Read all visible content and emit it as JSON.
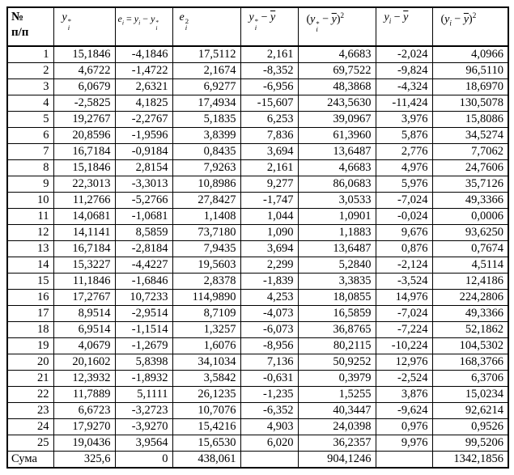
{
  "table": {
    "columns": [
      {
        "key": "num",
        "label_lines": [
          "№",
          "п/п"
        ]
      },
      {
        "key": "yhat",
        "math": [
          {
            "t": "v",
            "v": "y"
          },
          {
            "t": "ss",
            "sup": "*",
            "sub": "i"
          }
        ]
      },
      {
        "key": "e",
        "math": [
          {
            "t": "v",
            "v": "e"
          },
          {
            "t": "sub",
            "v": "i"
          },
          {
            "t": "tx",
            "v": " = "
          },
          {
            "t": "v",
            "v": "y"
          },
          {
            "t": "sub",
            "v": "i"
          },
          {
            "t": "tx",
            "v": " − "
          },
          {
            "t": "v",
            "v": "y"
          },
          {
            "t": "ss",
            "sup": "*",
            "sub": "i"
          }
        ]
      },
      {
        "key": "e2",
        "math": [
          {
            "t": "v",
            "v": "e"
          },
          {
            "t": "ss",
            "sup": "2",
            "sub": "i"
          }
        ]
      },
      {
        "key": "yhatdev",
        "math": [
          {
            "t": "v",
            "v": "y"
          },
          {
            "t": "ss",
            "sup": "*",
            "sub": "i"
          },
          {
            "t": "tx",
            "v": " − "
          },
          {
            "t": "bar",
            "v": "y"
          }
        ]
      },
      {
        "key": "yhatdev2",
        "math": [
          {
            "t": "tx",
            "v": "("
          },
          {
            "t": "v",
            "v": "y"
          },
          {
            "t": "ss",
            "sup": "*",
            "sub": "i"
          },
          {
            "t": "tx",
            "v": " − "
          },
          {
            "t": "bar",
            "v": "y"
          },
          {
            "t": "tx",
            "v": ")"
          },
          {
            "t": "sup",
            "v": "2"
          }
        ]
      },
      {
        "key": "ydev",
        "math": [
          {
            "t": "v",
            "v": "y"
          },
          {
            "t": "sub",
            "v": "i"
          },
          {
            "t": "tx",
            "v": " − "
          },
          {
            "t": "bar",
            "v": "y"
          }
        ]
      },
      {
        "key": "ydev2",
        "math": [
          {
            "t": "tx",
            "v": "("
          },
          {
            "t": "v",
            "v": "y"
          },
          {
            "t": "sub",
            "v": "i"
          },
          {
            "t": "tx",
            "v": " − "
          },
          {
            "t": "bar",
            "v": "y"
          },
          {
            "t": "tx",
            "v": ")"
          },
          {
            "t": "sup",
            "v": "2"
          }
        ]
      }
    ],
    "rows": [
      {
        "n": "1",
        "values": [
          "15,1846",
          "-4,1846",
          "17,5112",
          "2,161",
          "4,6683",
          "-2,024",
          "4,0966"
        ]
      },
      {
        "n": "2",
        "values": [
          "4,6722",
          "-1,4722",
          "2,1674",
          "-8,352",
          "69,7522",
          "-9,824",
          "96,5110"
        ]
      },
      {
        "n": "3",
        "values": [
          "6,0679",
          "2,6321",
          "6,9277",
          "-6,956",
          "48,3868",
          "-4,324",
          "18,6970"
        ]
      },
      {
        "n": "4",
        "values": [
          "-2,5825",
          "4,1825",
          "17,4934",
          "-15,607",
          "243,5630",
          "-11,424",
          "130,5078"
        ]
      },
      {
        "n": "5",
        "values": [
          "19,2767",
          "-2,2767",
          "5,1835",
          "6,253",
          "39,0967",
          "3,976",
          "15,8086"
        ]
      },
      {
        "n": "6",
        "values": [
          "20,8596",
          "-1,9596",
          "3,8399",
          "7,836",
          "61,3960",
          "5,876",
          "34,5274"
        ]
      },
      {
        "n": "7",
        "values": [
          "16,7184",
          "-0,9184",
          "0,8435",
          "3,694",
          "13,6487",
          "2,776",
          "7,7062"
        ]
      },
      {
        "n": "8",
        "values": [
          "15,1846",
          "2,8154",
          "7,9263",
          "2,161",
          "4,6683",
          "4,976",
          "24,7606"
        ]
      },
      {
        "n": "9",
        "values": [
          "22,3013",
          "-3,3013",
          "10,8986",
          "9,277",
          "86,0683",
          "5,976",
          "35,7126"
        ]
      },
      {
        "n": "10",
        "values": [
          "11,2766",
          "-5,2766",
          "27,8427",
          "-1,747",
          "3,0533",
          "-7,024",
          "49,3366"
        ]
      },
      {
        "n": "11",
        "values": [
          "14,0681",
          "-1,0681",
          "1,1408",
          "1,044",
          "1,0901",
          "-0,024",
          "0,0006"
        ]
      },
      {
        "n": "12",
        "values": [
          "14,1141",
          "8,5859",
          "73,7180",
          "1,090",
          "1,1883",
          "9,676",
          "93,6250"
        ]
      },
      {
        "n": "13",
        "values": [
          "16,7184",
          "-2,8184",
          "7,9435",
          "3,694",
          "13,6487",
          "0,876",
          "0,7674"
        ]
      },
      {
        "n": "14",
        "values": [
          "15,3227",
          "-4,4227",
          "19,5603",
          "2,299",
          "5,2840",
          "-2,124",
          "4,5114"
        ]
      },
      {
        "n": "15",
        "values": [
          "11,1846",
          "-1,6846",
          "2,8378",
          "-1,839",
          "3,3835",
          "-3,524",
          "12,4186"
        ]
      },
      {
        "n": "16",
        "values": [
          "17,2767",
          "10,7233",
          "114,9890",
          "4,253",
          "18,0855",
          "14,976",
          "224,2806"
        ]
      },
      {
        "n": "17",
        "values": [
          "8,9514",
          "-2,9514",
          "8,7109",
          "-4,073",
          "16,5859",
          "-7,024",
          "49,3366"
        ]
      },
      {
        "n": "18",
        "values": [
          "6,9514",
          "-1,1514",
          "1,3257",
          "-6,073",
          "36,8765",
          "-7,224",
          "52,1862"
        ]
      },
      {
        "n": "19",
        "values": [
          "4,0679",
          "-1,2679",
          "1,6076",
          "-8,956",
          "80,2115",
          "-10,224",
          "104,5302"
        ]
      },
      {
        "n": "20",
        "values": [
          "20,1602",
          "5,8398",
          "34,1034",
          "7,136",
          "50,9252",
          "12,976",
          "168,3766"
        ]
      },
      {
        "n": "21",
        "values": [
          "12,3932",
          "-1,8932",
          "3,5842",
          "-0,631",
          "0,3979",
          "-2,524",
          "6,3706"
        ]
      },
      {
        "n": "22",
        "values": [
          "11,7889",
          "5,1111",
          "26,1235",
          "-1,235",
          "1,5255",
          "3,876",
          "15,0234"
        ]
      },
      {
        "n": "23",
        "values": [
          "6,6723",
          "-3,2723",
          "10,7076",
          "-6,352",
          "40,3447",
          "-9,624",
          "92,6214"
        ]
      },
      {
        "n": "24",
        "values": [
          "17,9270",
          "-3,9270",
          "15,4216",
          "4,903",
          "24,0398",
          "0,976",
          "0,9526"
        ]
      },
      {
        "n": "25",
        "values": [
          "19,0436",
          "3,9564",
          "15,6530",
          "6,020",
          "36,2357",
          "9,976",
          "99,5206"
        ]
      }
    ],
    "sum_row": {
      "label": "Сума",
      "values": [
        "325,6",
        "0",
        "438,061",
        "",
        "904,1246",
        "",
        "1342,1856"
      ]
    }
  }
}
